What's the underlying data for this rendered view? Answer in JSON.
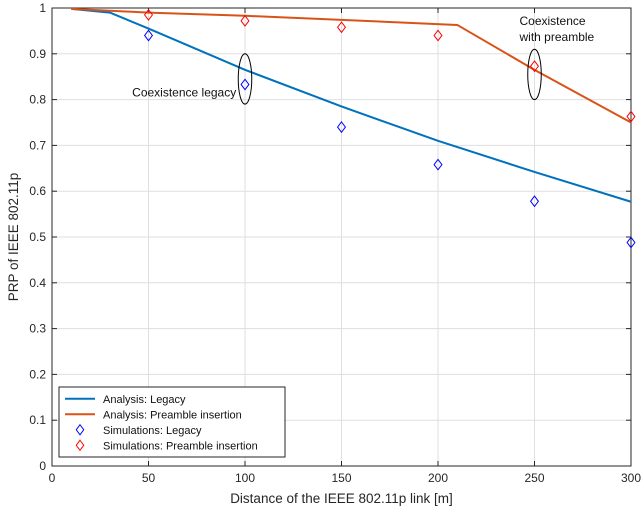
{
  "chart_data": {
    "type": "line",
    "xlabel": "Distance of the IEEE 802.11p link [m]",
    "ylabel": "PRP of IEEE 802.11p",
    "xlim": [
      0,
      300
    ],
    "ylim": [
      0,
      1
    ],
    "xticks": [
      0,
      50,
      100,
      150,
      200,
      250,
      300
    ],
    "yticks": [
      0,
      0.1,
      0.2,
      0.3,
      0.4,
      0.5,
      0.6,
      0.7,
      0.8,
      0.9,
      1
    ],
    "grid": true,
    "legend_position": "bottom-left",
    "series": [
      {
        "name": "Analysis: Legacy",
        "kind": "line",
        "color": "#0072BD",
        "x": [
          10,
          30,
          50,
          100,
          150,
          200,
          250,
          300
        ],
        "y": [
          0.998,
          0.99,
          0.955,
          0.865,
          0.785,
          0.71,
          0.642,
          0.577
        ]
      },
      {
        "name": "Analysis: Preamble insertion",
        "kind": "line",
        "color": "#D95319",
        "x": [
          10,
          50,
          100,
          150,
          210,
          250,
          300
        ],
        "y": [
          0.998,
          0.99,
          0.983,
          0.974,
          0.963,
          0.865,
          0.75
        ]
      },
      {
        "name": "Simulations: Legacy",
        "kind": "marker",
        "marker": "diamond",
        "color": "#0000FF",
        "x": [
          50,
          100,
          150,
          200,
          250,
          300
        ],
        "y": [
          0.94,
          0.833,
          0.74,
          0.658,
          0.578,
          0.488
        ]
      },
      {
        "name": "Simulations: Preamble insertion",
        "kind": "marker",
        "marker": "diamond",
        "color": "#FF0000",
        "x": [
          50,
          100,
          150,
          200,
          250,
          300
        ],
        "y": [
          0.985,
          0.972,
          0.958,
          0.94,
          0.873,
          0.763
        ]
      }
    ],
    "annotations": [
      {
        "id": "legacy",
        "lines": [
          "Coexistence legacy"
        ],
        "ellipse": {
          "cx": 100,
          "cy": 0.845,
          "rx": 3.5,
          "ry": 0.055
        },
        "text_anchor": "end"
      },
      {
        "id": "preamble",
        "lines": [
          "Coexistence",
          "with preamble"
        ],
        "ellipse": {
          "cx": 250,
          "cy": 0.855,
          "rx": 3.5,
          "ry": 0.055
        },
        "text_anchor": "start"
      }
    ]
  }
}
